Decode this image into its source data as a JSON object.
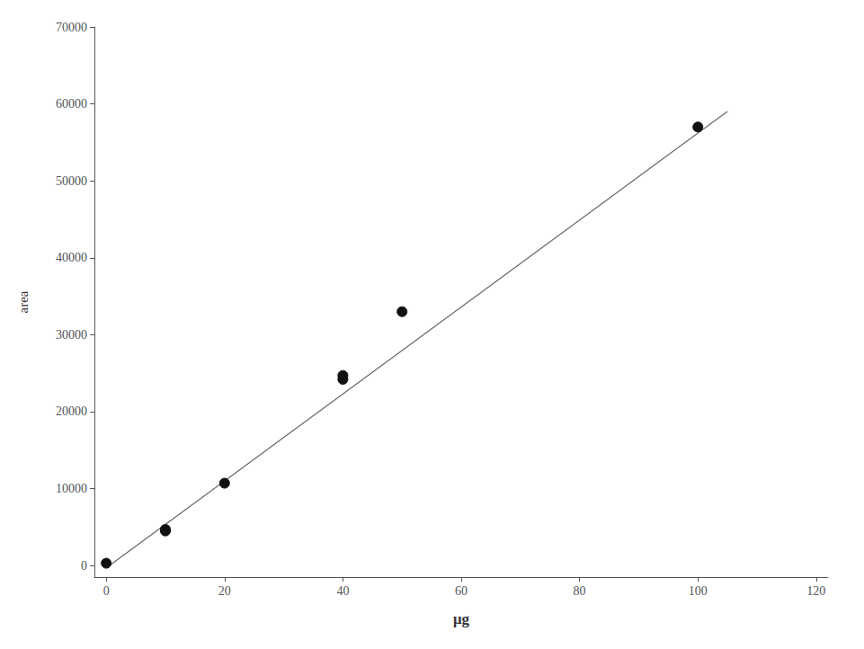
{
  "chart_data": {
    "type": "scatter",
    "xlabel": "μg",
    "ylabel": "area",
    "xlim": [
      -2,
      122
    ],
    "ylim": [
      -1500,
      70000
    ],
    "xticks": [
      0,
      20,
      40,
      60,
      80,
      100,
      120
    ],
    "yticks": [
      0,
      10000,
      20000,
      30000,
      40000,
      50000,
      60000,
      70000
    ],
    "grid": false,
    "series": [
      {
        "type": "line",
        "color": "#666666",
        "x": [
          0,
          105
        ],
        "values": [
          -300,
          59025
        ]
      },
      {
        "type": "scatter",
        "color": "#111111",
        "x": [
          0,
          10,
          10,
          20,
          40,
          40,
          50,
          100
        ],
        "values": [
          300,
          4500,
          4700,
          10700,
          24200,
          24700,
          33000,
          57000
        ]
      }
    ]
  }
}
